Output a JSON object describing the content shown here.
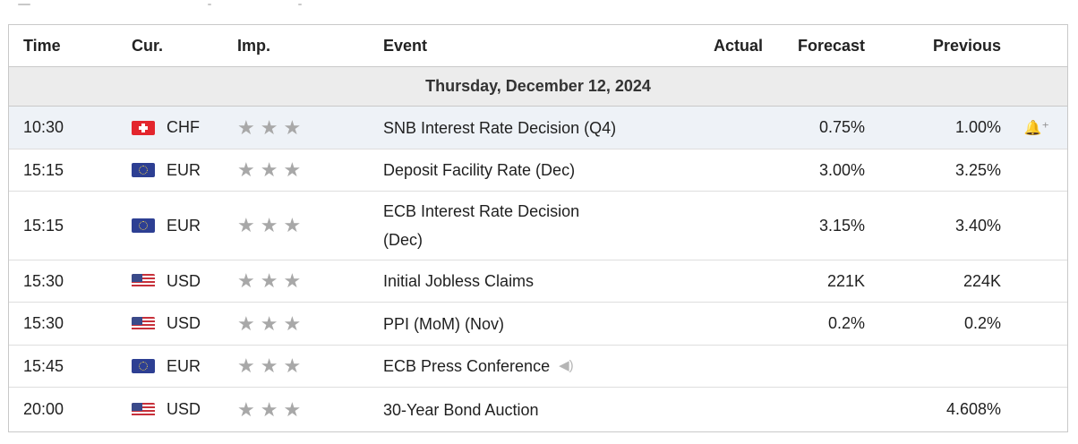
{
  "header": {
    "time": "Time",
    "currency": "Cur.",
    "importance": "Imp.",
    "event": "Event",
    "actual": "Actual",
    "forecast": "Forecast",
    "previous": "Previous"
  },
  "date_label": "Thursday, December 12, 2024",
  "rows": [
    {
      "time": "10:30",
      "flag": "flag-ch",
      "currency": "CHF",
      "stars": "★★★",
      "event": "SNB Interest Rate Decision (Q4)",
      "actual": "",
      "forecast": "0.75%",
      "previous": "1.00%",
      "alert_icon": "🔔⁺"
    },
    {
      "time": "15:15",
      "flag": "flag-eu",
      "currency": "EUR",
      "stars": "★★★",
      "event": "Deposit Facility Rate (Dec)",
      "actual": "",
      "forecast": "3.00%",
      "previous": "3.25%"
    },
    {
      "time": "15:15",
      "flag": "flag-eu",
      "currency": "EUR",
      "stars": "★★★",
      "event_line1": "ECB Interest Rate Decision",
      "event_line2": "(Dec)",
      "actual": "",
      "forecast": "3.15%",
      "previous": "3.40%"
    },
    {
      "time": "15:30",
      "flag": "flag-us",
      "currency": "USD",
      "stars": "★★★",
      "event": "Initial Jobless Claims",
      "actual": "",
      "forecast": "221K",
      "previous": "224K"
    },
    {
      "time": "15:30",
      "flag": "flag-us",
      "currency": "USD",
      "stars": "★★★",
      "event": "PPI (MoM) (Nov)",
      "actual": "",
      "forecast": "0.2%",
      "previous": "0.2%"
    },
    {
      "time": "15:45",
      "flag": "flag-eu",
      "currency": "EUR",
      "stars": "★★★",
      "event": "ECB Press Conference",
      "speaker_icon": "◀)",
      "actual": "",
      "forecast": "",
      "previous": ""
    },
    {
      "time": "20:00",
      "flag": "flag-us",
      "currency": "USD",
      "stars": "★★★",
      "event": "30-Year Bond Auction",
      "actual": "",
      "forecast": "",
      "previous": "4.608%"
    }
  ]
}
